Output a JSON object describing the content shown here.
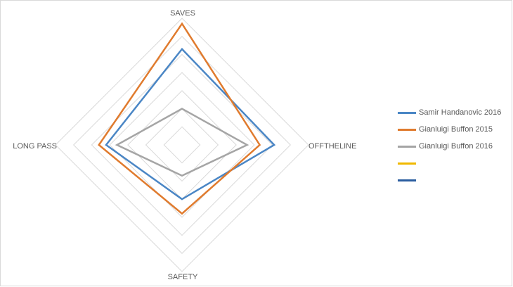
{
  "chart_data": {
    "type": "radar",
    "axes": [
      "SAVES",
      "OFFTHELINE",
      "SAFETY",
      "LONG PASS"
    ],
    "range": [
      0,
      7
    ],
    "grid": true,
    "legend_position": "right",
    "series": [
      {
        "name": "Samir Handanovic 2016",
        "color": "#4a86c5",
        "values": [
          5.3,
          5.1,
          3.0,
          4.2
        ]
      },
      {
        "name": "Gianluigi Buffon 2015",
        "color": "#e07b2e",
        "values": [
          6.7,
          4.3,
          3.8,
          4.6
        ]
      },
      {
        "name": "Gianluigi Buffon 2016",
        "color": "#a5a5a5",
        "values": [
          2.0,
          3.6,
          1.7,
          3.6
        ]
      },
      {
        "name": "",
        "color": "#f0b800",
        "values": []
      },
      {
        "name": "",
        "color": "#2a5d9f",
        "values": []
      }
    ]
  }
}
